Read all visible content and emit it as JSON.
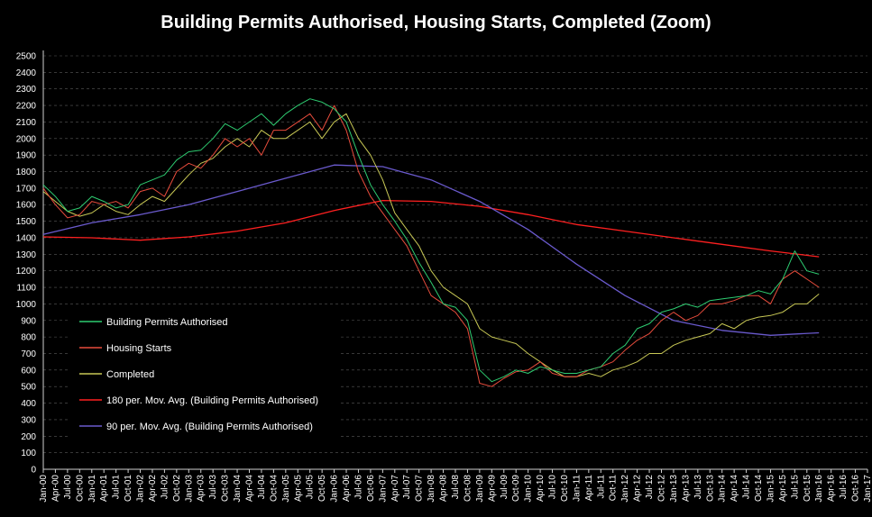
{
  "chart_data": {
    "type": "line",
    "title": "Building Permits Authorised, Housing Starts, Completed (Zoom)",
    "xlabel": "",
    "ylabel": "",
    "ylim": [
      0,
      2500
    ],
    "yticks": [
      0,
      100,
      200,
      300,
      400,
      500,
      600,
      700,
      800,
      900,
      1000,
      1100,
      1200,
      1300,
      1400,
      1500,
      1600,
      1700,
      1800,
      1900,
      2000,
      2100,
      2200,
      2300,
      2400,
      2500
    ],
    "xlim": [
      "Jan-00",
      "Jan-17"
    ],
    "x_tick_labels": [
      "Jan-00",
      "Apr-00",
      "Jul-00",
      "Oct-00",
      "Jan-01",
      "Apr-01",
      "Jul-01",
      "Oct-01",
      "Jan-02",
      "Apr-02",
      "Jul-02",
      "Oct-02",
      "Jan-03",
      "Apr-03",
      "Jul-03",
      "Oct-03",
      "Jan-04",
      "Apr-04",
      "Jul-04",
      "Oct-04",
      "Jan-05",
      "Apr-05",
      "Jul-05",
      "Oct-05",
      "Jan-06",
      "Apr-06",
      "Jul-06",
      "Oct-06",
      "Jan-07",
      "Apr-07",
      "Jul-07",
      "Oct-07",
      "Jan-08",
      "Apr-08",
      "Jul-08",
      "Oct-08",
      "Jan-09",
      "Apr-09",
      "Jul-09",
      "Oct-09",
      "Jan-10",
      "Apr-10",
      "Jul-10",
      "Oct-10",
      "Jan-11",
      "Apr-11",
      "Jul-11",
      "Oct-11",
      "Jan-12",
      "Apr-12",
      "Jul-12",
      "Oct-12",
      "Jan-13",
      "Apr-13",
      "Jul-13",
      "Oct-13",
      "Jan-14",
      "Apr-14",
      "Jul-14",
      "Oct-14",
      "Jan-15",
      "Apr-15",
      "Jul-15",
      "Oct-15",
      "Jan-16",
      "Apr-16",
      "Jul-16",
      "Oct-16",
      "Jan-17"
    ],
    "grid": "horizontal dashed",
    "legend_position": "lower-left",
    "series": [
      {
        "name": "Building Permits Authorised",
        "color": "#2ecc71",
        "x": [
          "Jan-00",
          "Apr-00",
          "Jul-00",
          "Oct-00",
          "Jan-01",
          "Apr-01",
          "Jul-01",
          "Oct-01",
          "Jan-02",
          "Apr-02",
          "Jul-02",
          "Oct-02",
          "Jan-03",
          "Apr-03",
          "Jul-03",
          "Oct-03",
          "Jan-04",
          "Apr-04",
          "Jul-04",
          "Oct-04",
          "Jan-05",
          "Apr-05",
          "Jul-05",
          "Oct-05",
          "Jan-06",
          "Apr-06",
          "Jul-06",
          "Oct-06",
          "Jan-07",
          "Apr-07",
          "Jul-07",
          "Oct-07",
          "Jan-08",
          "Apr-08",
          "Jul-08",
          "Oct-08",
          "Jan-09",
          "Apr-09",
          "Jul-09",
          "Oct-09",
          "Jan-10",
          "Apr-10",
          "Jul-10",
          "Oct-10",
          "Jan-11",
          "Apr-11",
          "Jul-11",
          "Oct-11",
          "Jan-12",
          "Apr-12",
          "Jul-12",
          "Oct-12",
          "Jan-13",
          "Apr-13",
          "Jul-13",
          "Oct-13",
          "Jan-14",
          "Apr-14",
          "Jul-14",
          "Oct-14",
          "Jan-15",
          "Apr-15",
          "Jul-15",
          "Oct-15",
          "Jan-16"
        ],
        "values": [
          1720,
          1650,
          1560,
          1580,
          1650,
          1620,
          1580,
          1600,
          1720,
          1750,
          1780,
          1870,
          1920,
          1930,
          2000,
          2090,
          2050,
          2100,
          2150,
          2080,
          2150,
          2200,
          2240,
          2220,
          2180,
          2100,
          1900,
          1720,
          1600,
          1500,
          1390,
          1250,
          1130,
          1000,
          980,
          900,
          600,
          530,
          560,
          600,
          580,
          620,
          600,
          580,
          580,
          600,
          620,
          700,
          750,
          850,
          880,
          950,
          970,
          1000,
          980,
          1020,
          1030,
          1040,
          1050,
          1080,
          1060,
          1150,
          1320,
          1200,
          1180
        ]
      },
      {
        "name": "Housing Starts",
        "color": "#e74c3c",
        "x": [
          "Jan-00",
          "Apr-00",
          "Jul-00",
          "Oct-00",
          "Jan-01",
          "Apr-01",
          "Jul-01",
          "Oct-01",
          "Jan-02",
          "Apr-02",
          "Jul-02",
          "Oct-02",
          "Jan-03",
          "Apr-03",
          "Jul-03",
          "Oct-03",
          "Jan-04",
          "Apr-04",
          "Jul-04",
          "Oct-04",
          "Jan-05",
          "Apr-05",
          "Jul-05",
          "Oct-05",
          "Jan-06",
          "Apr-06",
          "Jul-06",
          "Oct-06",
          "Jan-07",
          "Apr-07",
          "Jul-07",
          "Oct-07",
          "Jan-08",
          "Apr-08",
          "Jul-08",
          "Oct-08",
          "Jan-09",
          "Apr-09",
          "Jul-09",
          "Oct-09",
          "Jan-10",
          "Apr-10",
          "Jul-10",
          "Oct-10",
          "Jan-11",
          "Apr-11",
          "Jul-11",
          "Oct-11",
          "Jan-12",
          "Apr-12",
          "Jul-12",
          "Oct-12",
          "Jan-13",
          "Apr-13",
          "Jul-13",
          "Oct-13",
          "Jan-14",
          "Apr-14",
          "Jul-14",
          "Oct-14",
          "Jan-15",
          "Apr-15",
          "Jul-15",
          "Oct-15",
          "Jan-16"
        ],
        "values": [
          1700,
          1600,
          1520,
          1540,
          1620,
          1600,
          1620,
          1580,
          1680,
          1700,
          1650,
          1800,
          1850,
          1820,
          1900,
          2000,
          1950,
          2000,
          1900,
          2050,
          2050,
          2100,
          2150,
          2050,
          2200,
          2050,
          1800,
          1650,
          1550,
          1450,
          1350,
          1200,
          1050,
          1000,
          950,
          850,
          520,
          500,
          550,
          590,
          600,
          650,
          580,
          560,
          560,
          600,
          620,
          650,
          720,
          780,
          820,
          900,
          950,
          900,
          930,
          1000,
          1000,
          1020,
          1050,
          1050,
          1000,
          1150,
          1200,
          1150,
          1100
        ]
      },
      {
        "name": "Completed",
        "color": "#c8c855",
        "x": [
          "Jan-00",
          "Apr-00",
          "Jul-00",
          "Oct-00",
          "Jan-01",
          "Apr-01",
          "Jul-01",
          "Oct-01",
          "Jan-02",
          "Apr-02",
          "Jul-02",
          "Oct-02",
          "Jan-03",
          "Apr-03",
          "Jul-03",
          "Oct-03",
          "Jan-04",
          "Apr-04",
          "Jul-04",
          "Oct-04",
          "Jan-05",
          "Apr-05",
          "Jul-05",
          "Oct-05",
          "Jan-06",
          "Apr-06",
          "Jul-06",
          "Oct-06",
          "Jan-07",
          "Apr-07",
          "Jul-07",
          "Oct-07",
          "Jan-08",
          "Apr-08",
          "Jul-08",
          "Oct-08",
          "Jan-09",
          "Apr-09",
          "Jul-09",
          "Oct-09",
          "Jan-10",
          "Apr-10",
          "Jul-10",
          "Oct-10",
          "Jan-11",
          "Apr-11",
          "Jul-11",
          "Oct-11",
          "Jan-12",
          "Apr-12",
          "Jul-12",
          "Oct-12",
          "Jan-13",
          "Apr-13",
          "Jul-13",
          "Oct-13",
          "Jan-14",
          "Apr-14",
          "Jul-14",
          "Oct-14",
          "Jan-15",
          "Apr-15",
          "Jul-15",
          "Oct-15",
          "Jan-16"
        ],
        "values": [
          1680,
          1620,
          1560,
          1530,
          1550,
          1600,
          1560,
          1540,
          1600,
          1650,
          1620,
          1700,
          1780,
          1850,
          1880,
          1950,
          2000,
          1950,
          2050,
          2000,
          2000,
          2050,
          2100,
          2000,
          2100,
          2150,
          2000,
          1900,
          1750,
          1550,
          1450,
          1350,
          1200,
          1100,
          1050,
          1000,
          850,
          800,
          780,
          760,
          700,
          650,
          600,
          560,
          560,
          580,
          560,
          600,
          620,
          650,
          700,
          700,
          750,
          780,
          800,
          820,
          880,
          850,
          900,
          920,
          930,
          950,
          1000,
          1000,
          1060
        ]
      },
      {
        "name": "180 per. Mov. Avg. (Building Permits Authorised)",
        "color": "#ff2020",
        "x": [
          "Jan-00",
          "Jan-01",
          "Jan-02",
          "Jan-03",
          "Jan-04",
          "Jan-05",
          "Jan-06",
          "Jan-07",
          "Jan-08",
          "Jan-09",
          "Jan-10",
          "Jan-11",
          "Jan-12",
          "Jan-13",
          "Jan-14",
          "Jan-15",
          "Jan-16"
        ],
        "values": [
          1405,
          1400,
          1385,
          1405,
          1440,
          1490,
          1565,
          1625,
          1620,
          1590,
          1540,
          1480,
          1440,
          1400,
          1360,
          1320,
          1285
        ]
      },
      {
        "name": "90 per. Mov. Avg. (Building Permits Authorised)",
        "color": "#6a5acd",
        "x": [
          "Jan-00",
          "Jan-01",
          "Jan-02",
          "Jan-03",
          "Jan-04",
          "Jan-05",
          "Jan-06",
          "Jan-07",
          "Jan-08",
          "Jan-09",
          "Jan-10",
          "Jan-11",
          "Jan-12",
          "Jan-13",
          "Jan-14",
          "Jan-15",
          "Jan-16"
        ],
        "values": [
          1420,
          1490,
          1540,
          1600,
          1680,
          1760,
          1840,
          1830,
          1750,
          1620,
          1450,
          1240,
          1050,
          900,
          840,
          810,
          825
        ]
      }
    ]
  }
}
